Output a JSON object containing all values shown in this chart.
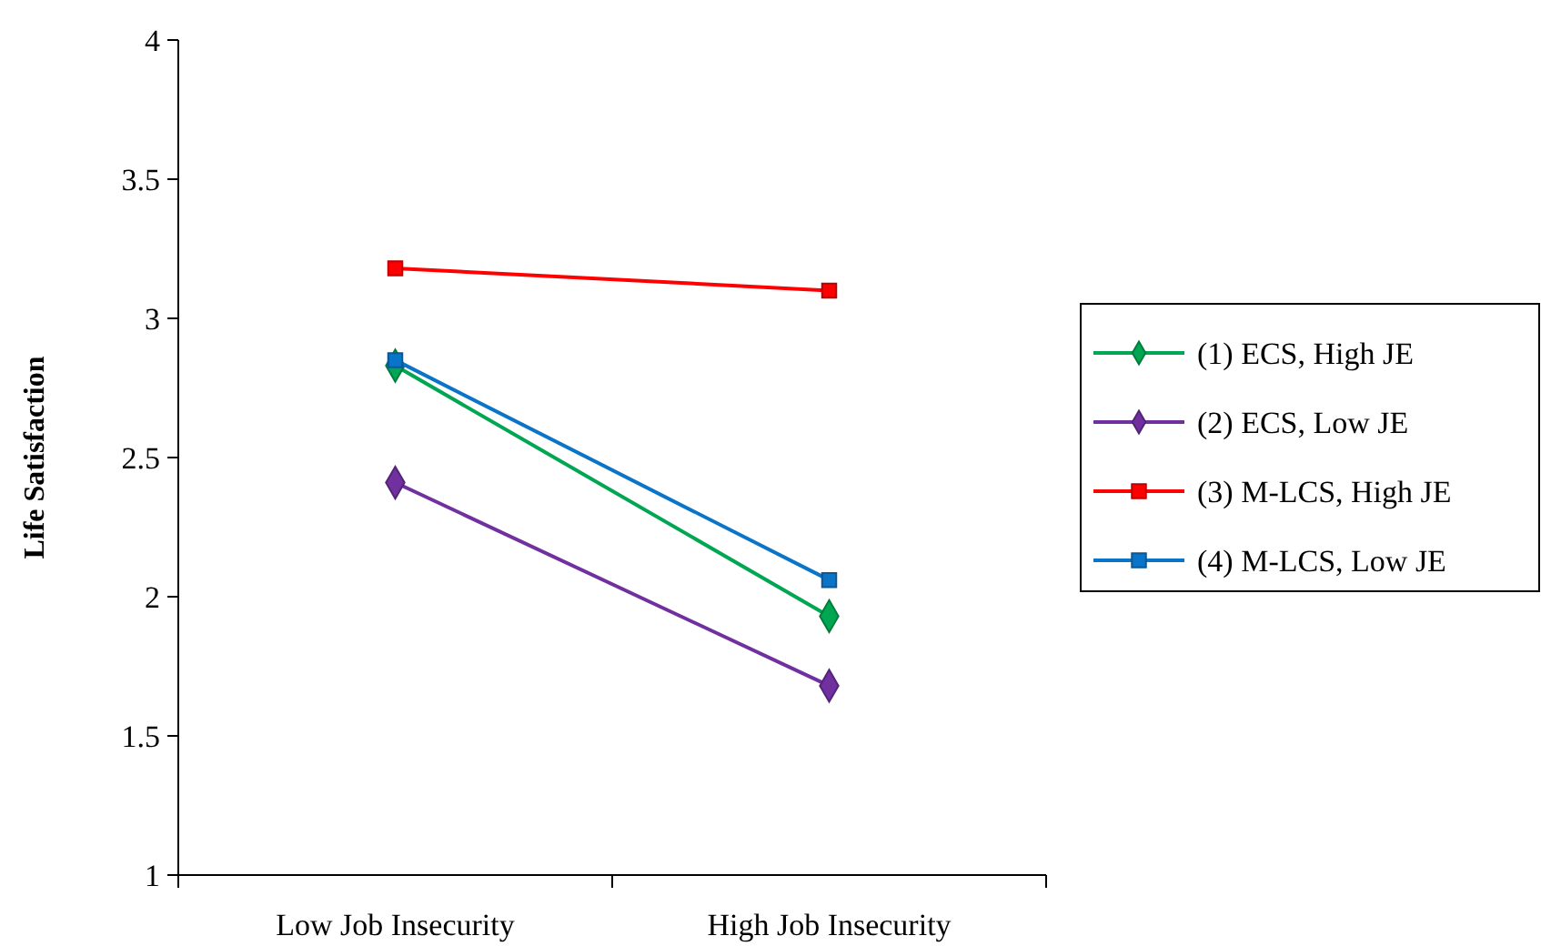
{
  "chart_data": {
    "type": "line",
    "ylabel": "Life Satisfaction",
    "categories": [
      "Low Job Insecurity",
      "High Job Insecurity"
    ],
    "ylim": [
      1,
      4
    ],
    "yticks": [
      1,
      1.5,
      2,
      2.5,
      3,
      3.5,
      4
    ],
    "grid": false,
    "legend": "right",
    "series": [
      {
        "name": "(1) ECS, High JE",
        "color": "#00a651",
        "marker": "diamond",
        "values": [
          2.83,
          1.93
        ]
      },
      {
        "name": "(2) ECS, Low JE",
        "color": "#7030a0",
        "marker": "diamond",
        "values": [
          2.41,
          1.68
        ]
      },
      {
        "name": "(3) M-LCS, High JE",
        "color": "#ff0000",
        "marker": "square",
        "values": [
          3.18,
          3.1
        ]
      },
      {
        "name": "(4) M-LCS, Low JE",
        "color": "#0a74c8",
        "marker": "square",
        "values": [
          2.85,
          2.06
        ]
      }
    ]
  }
}
